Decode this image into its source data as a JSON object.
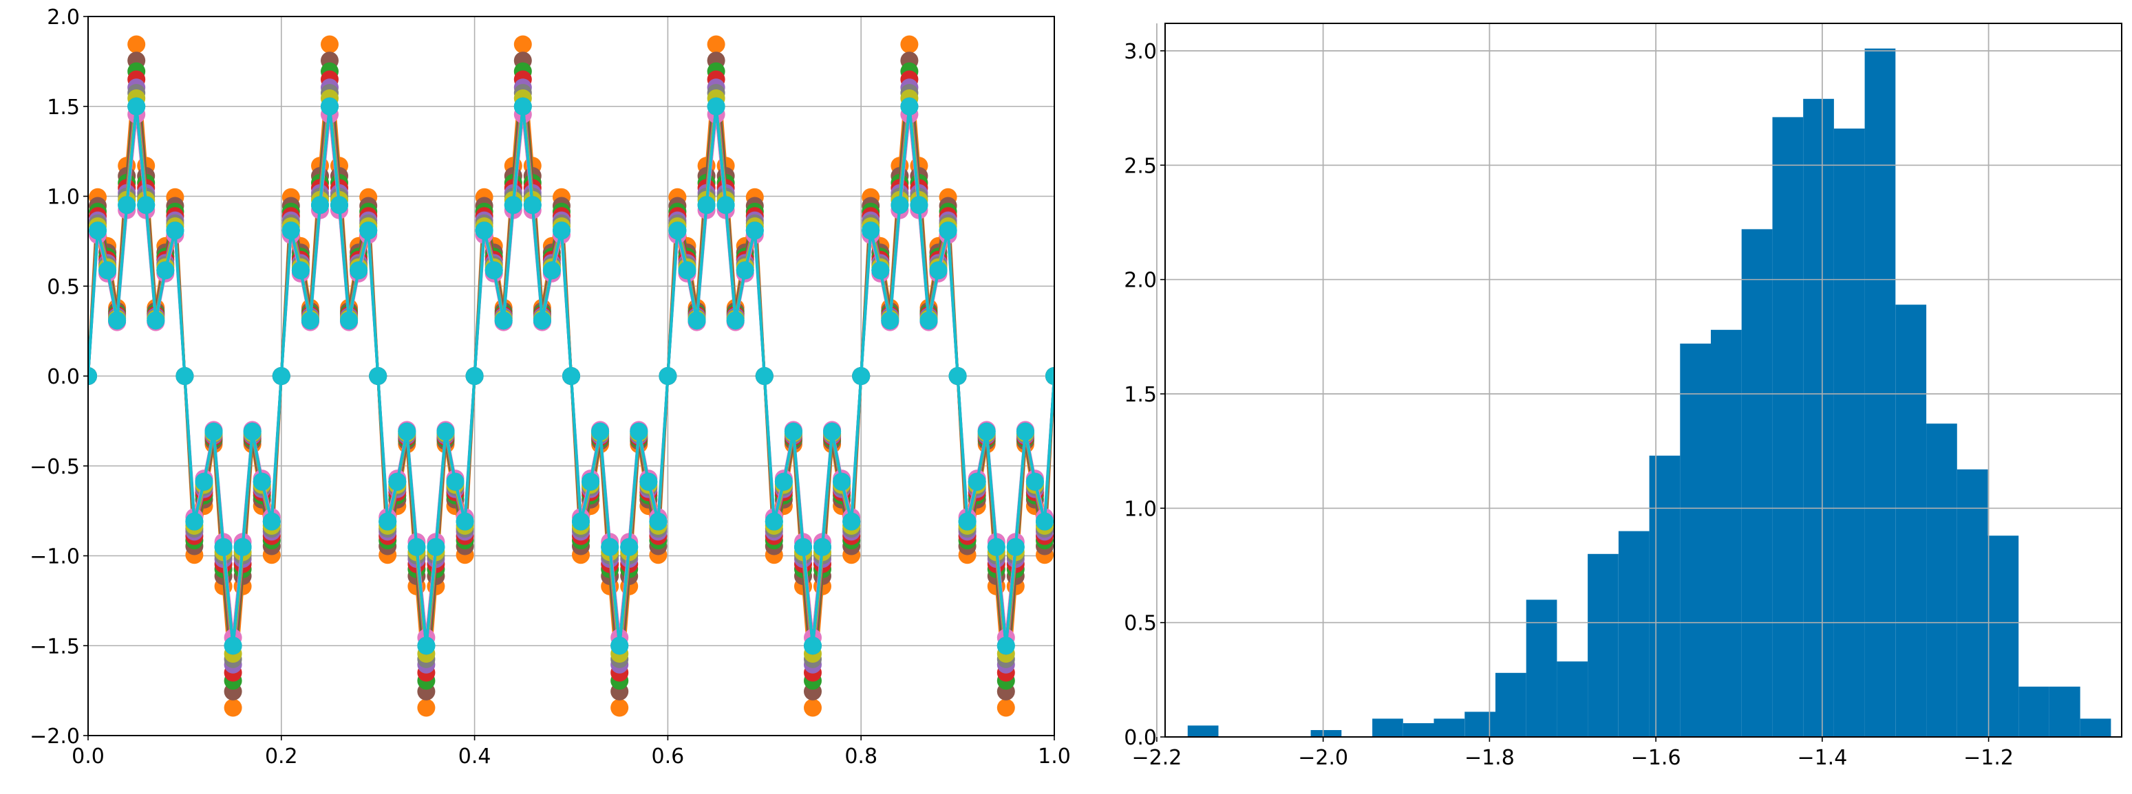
{
  "chart_data": [
    {
      "type": "line",
      "xlim": [
        0.0,
        1.0
      ],
      "ylim": [
        -2.0,
        2.0
      ],
      "xticks": [
        "0.0",
        "0.2",
        "0.4",
        "0.6",
        "0.8",
        "1.0"
      ],
      "yticks": [
        "2.0",
        "1.5",
        "1.0",
        "0.5",
        "0.0",
        "−0.5",
        "−1.0",
        "−1.5",
        "−2.0"
      ],
      "grid": true,
      "markers": "circle",
      "signal": {
        "function": "sin(2π·5x) + 0.5·sin(2π·25x)",
        "samples": 101
      },
      "series": [
        {
          "color": "#ff7f0e",
          "scale": 1.23
        },
        {
          "color": "#8c564b",
          "scale": 1.17
        },
        {
          "color": "#2ca02c",
          "scale": 1.13
        },
        {
          "color": "#d62728",
          "scale": 1.1
        },
        {
          "color": "#9467bd",
          "scale": 1.07
        },
        {
          "color": "#7f7f7f",
          "scale": 1.05
        },
        {
          "color": "#bcbd22",
          "scale": 1.03
        },
        {
          "color": "#e377c2",
          "scale": 0.97
        },
        {
          "color": "#1f77b4",
          "scale": 1.0
        },
        {
          "color": "#17becf",
          "scale": 1.0
        }
      ]
    },
    {
      "type": "bar",
      "subtype": "histogram",
      "color": "#0072b2",
      "xlim": [
        -2.19,
        -1.04
      ],
      "ylim": [
        0,
        3.12
      ],
      "xticks": [
        "−2.2",
        "−2.0",
        "−1.8",
        "−1.6",
        "−1.4",
        "−1.2"
      ],
      "yticks": [
        "0.0",
        "0.5",
        "1.0",
        "1.5",
        "2.0",
        "2.5",
        "3.0"
      ],
      "grid": true,
      "bin_edges": [
        -2.1629,
        -2.1259,
        -2.0889,
        -2.0519,
        -2.0149,
        -1.9779,
        -1.9409,
        -1.9039,
        -1.8669,
        -1.8299,
        -1.7929,
        -1.7559,
        -1.7189,
        -1.6819,
        -1.6449,
        -1.6079,
        -1.5709,
        -1.5339,
        -1.4969,
        -1.4599,
        -1.4229,
        -1.3859,
        -1.3489,
        -1.3119,
        -1.2749,
        -1.2379,
        -1.2009,
        -1.1639,
        -1.1269,
        -1.0899,
        -1.0529
      ],
      "values": [
        0.05,
        0.0,
        0.0,
        0.0,
        0.03,
        0.0,
        0.08,
        0.06,
        0.08,
        0.11,
        0.28,
        0.6,
        0.33,
        0.8,
        0.9,
        1.23,
        1.72,
        1.78,
        2.22,
        2.71,
        2.79,
        2.66,
        3.01,
        1.89,
        1.37,
        1.17,
        0.88,
        0.22,
        0.22,
        0.08
      ]
    }
  ]
}
